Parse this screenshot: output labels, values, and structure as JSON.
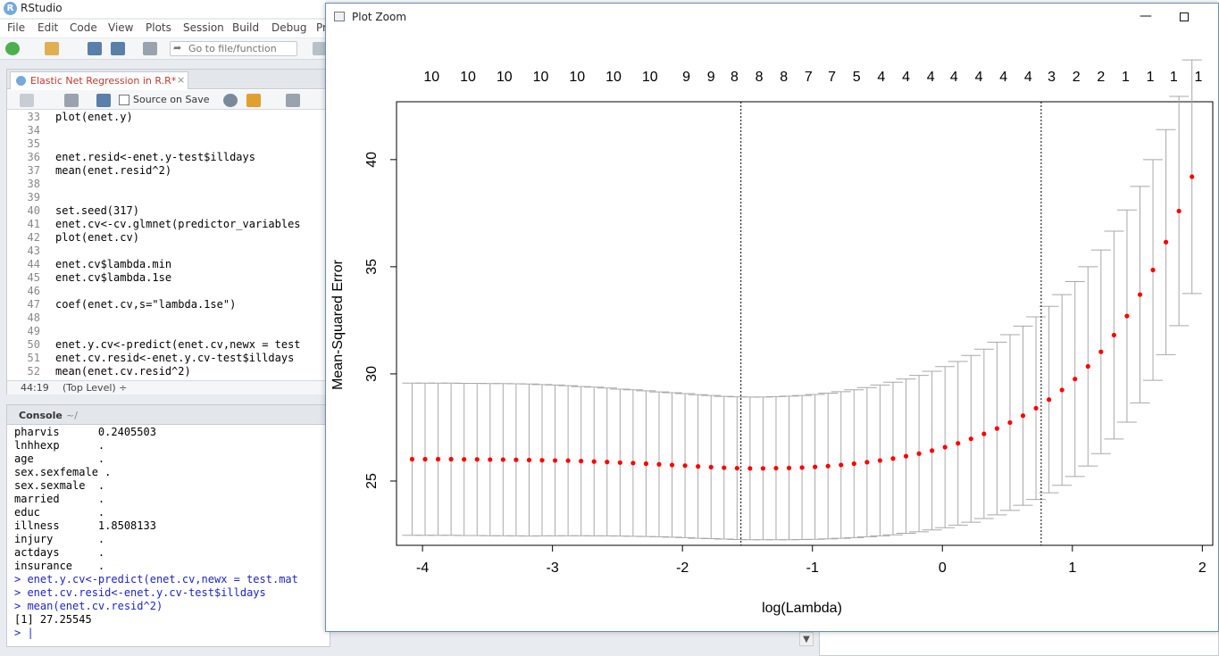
{
  "app": {
    "title": "RStudio",
    "menu": [
      "File",
      "Edit",
      "Code",
      "View",
      "Plots",
      "Session",
      "Build",
      "Debug",
      "Pr"
    ],
    "goto_placeholder": "Go to file/function"
  },
  "editor": {
    "tab_label": "Elastic Net Regression in R.R*",
    "tab_close": "×",
    "source_on_save": "Source on Save",
    "lines": [
      {
        "n": "33",
        "code": "plot(enet.y)"
      },
      {
        "n": "34",
        "code": ""
      },
      {
        "n": "35",
        "code": ""
      },
      {
        "n": "36",
        "code": "enet.resid<-enet.y-test$illdays"
      },
      {
        "n": "37",
        "code": "mean(enet.resid^2)"
      },
      {
        "n": "38",
        "code": ""
      },
      {
        "n": "39",
        "code": ""
      },
      {
        "n": "40",
        "code": "set.seed(317)"
      },
      {
        "n": "41",
        "code": "enet.cv<-cv.glmnet(predictor_variables"
      },
      {
        "n": "42",
        "code": "plot(enet.cv)"
      },
      {
        "n": "43",
        "code": ""
      },
      {
        "n": "44",
        "code": "enet.cv$lambda.min"
      },
      {
        "n": "45",
        "code": "enet.cv$lambda.1se"
      },
      {
        "n": "46",
        "code": ""
      },
      {
        "n": "47",
        "code": "coef(enet.cv,s=\"lambda.1se\")"
      },
      {
        "n": "48",
        "code": ""
      },
      {
        "n": "49",
        "code": ""
      },
      {
        "n": "50",
        "code": "enet.y.cv<-predict(enet.cv,newx = test"
      },
      {
        "n": "51",
        "code": "enet.cv.resid<-enet.y.cv-test$illdays"
      },
      {
        "n": "52",
        "code": "mean(enet.cv.resid^2)"
      }
    ],
    "status_position": "44:19",
    "status_level": "(Top Level) ÷"
  },
  "console": {
    "title": "Console",
    "path": "~/",
    "lines": [
      {
        "text": "pharvis      0.2405503",
        "type": "out"
      },
      {
        "text": "lnhhexp      .",
        "type": "out"
      },
      {
        "text": "age          .",
        "type": "out"
      },
      {
        "text": "sex.sexfemale .",
        "type": "out"
      },
      {
        "text": "sex.sexmale  .",
        "type": "out"
      },
      {
        "text": "married      .",
        "type": "out"
      },
      {
        "text": "educ         .",
        "type": "out"
      },
      {
        "text": "illness      1.8508133",
        "type": "out"
      },
      {
        "text": "injury       .",
        "type": "out"
      },
      {
        "text": "actdays      .",
        "type": "out"
      },
      {
        "text": "insurance    .",
        "type": "out"
      },
      {
        "text": "> enet.y.cv<-predict(enet.cv,newx = test.mat",
        "type": "cmd"
      },
      {
        "text": "> enet.cv.resid<-enet.y.cv-test$illdays",
        "type": "cmd"
      },
      {
        "text": "> mean(enet.cv.resid^2)",
        "type": "cmd"
      },
      {
        "text": "[1] 27.25545",
        "type": "out"
      },
      {
        "text": "> |",
        "type": "cmd"
      }
    ]
  },
  "plot_window": {
    "title": "Plot Zoom",
    "minimize": "—"
  },
  "chart_data": {
    "type": "scatter",
    "xlabel": "log(Lambda)",
    "ylabel": "Mean-Squared Error",
    "xlim": [
      -4.2,
      2.08
    ],
    "ylim": [
      22,
      42.7
    ],
    "xticks": [
      -4,
      -3,
      -2,
      -1,
      0,
      1,
      2
    ],
    "yticks": [
      25,
      30,
      35,
      40
    ],
    "lambda_min_log": -1.55,
    "lambda_1se_log": 0.76,
    "top_axis_labels": [
      {
        "x": -3.93,
        "label": "10"
      },
      {
        "x": -3.65,
        "label": "10"
      },
      {
        "x": -3.37,
        "label": "10"
      },
      {
        "x": -3.09,
        "label": "10"
      },
      {
        "x": -2.81,
        "label": "10"
      },
      {
        "x": -2.53,
        "label": "10"
      },
      {
        "x": -2.25,
        "label": "10"
      },
      {
        "x": -1.97,
        "label": "9"
      },
      {
        "x": -1.78,
        "label": "9"
      },
      {
        "x": -1.6,
        "label": "8"
      },
      {
        "x": -1.41,
        "label": "8"
      },
      {
        "x": -1.22,
        "label": "8"
      },
      {
        "x": -1.03,
        "label": "7"
      },
      {
        "x": -0.85,
        "label": "7"
      },
      {
        "x": -0.66,
        "label": "5"
      },
      {
        "x": -0.47,
        "label": "4"
      },
      {
        "x": -0.28,
        "label": "4"
      },
      {
        "x": -0.09,
        "label": "4"
      },
      {
        "x": 0.09,
        "label": "4"
      },
      {
        "x": 0.28,
        "label": "4"
      },
      {
        "x": 0.47,
        "label": "4"
      },
      {
        "x": 0.66,
        "label": "4"
      },
      {
        "x": 0.84,
        "label": "3"
      },
      {
        "x": 1.03,
        "label": "2"
      },
      {
        "x": 1.22,
        "label": "2"
      },
      {
        "x": 1.41,
        "label": "1"
      },
      {
        "x": 1.6,
        "label": "1"
      },
      {
        "x": 1.78,
        "label": "1"
      },
      {
        "x": 1.97,
        "label": "1"
      }
    ],
    "x": [
      -4.08,
      -3.98,
      -3.88,
      -3.78,
      -3.68,
      -3.58,
      -3.48,
      -3.38,
      -3.28,
      -3.18,
      -3.08,
      -2.98,
      -2.88,
      -2.78,
      -2.68,
      -2.58,
      -2.48,
      -2.38,
      -2.28,
      -2.18,
      -2.08,
      -1.98,
      -1.88,
      -1.78,
      -1.68,
      -1.58,
      -1.48,
      -1.38,
      -1.28,
      -1.18,
      -1.08,
      -0.98,
      -0.88,
      -0.78,
      -0.68,
      -0.58,
      -0.48,
      -0.38,
      -0.28,
      -0.18,
      -0.08,
      0.02,
      0.12,
      0.22,
      0.32,
      0.42,
      0.52,
      0.62,
      0.72,
      0.82,
      0.92,
      1.02,
      1.12,
      1.22,
      1.32,
      1.42,
      1.52,
      1.62,
      1.72,
      1.82,
      1.92
    ],
    "mse": [
      26.02,
      26.02,
      26.02,
      26.02,
      26.01,
      26.01,
      26.0,
      26.0,
      25.99,
      25.98,
      25.97,
      25.96,
      25.95,
      25.93,
      25.91,
      25.89,
      25.86,
      25.84,
      25.81,
      25.78,
      25.75,
      25.72,
      25.68,
      25.65,
      25.62,
      25.6,
      25.59,
      25.59,
      25.6,
      25.61,
      25.63,
      25.66,
      25.7,
      25.75,
      25.81,
      25.88,
      25.96,
      26.05,
      26.16,
      26.28,
      26.42,
      26.58,
      26.76,
      26.97,
      27.2,
      27.45,
      27.73,
      28.05,
      28.4,
      28.8,
      29.25,
      29.76,
      30.35,
      31.03,
      31.81,
      32.7,
      33.7,
      34.85,
      36.15,
      37.6,
      39.2
    ],
    "error_bar": [
      3.55,
      3.55,
      3.55,
      3.55,
      3.55,
      3.55,
      3.55,
      3.55,
      3.55,
      3.55,
      3.53,
      3.52,
      3.5,
      3.48,
      3.47,
      3.45,
      3.43,
      3.42,
      3.4,
      3.38,
      3.37,
      3.36,
      3.35,
      3.34,
      3.33,
      3.33,
      3.33,
      3.33,
      3.34,
      3.35,
      3.36,
      3.38,
      3.4,
      3.42,
      3.45,
      3.48,
      3.52,
      3.56,
      3.6,
      3.65,
      3.7,
      3.76,
      3.82,
      3.89,
      3.95,
      4.03,
      4.1,
      4.18,
      4.26,
      4.35,
      4.45,
      4.55,
      4.65,
      4.75,
      4.85,
      4.95,
      5.05,
      5.15,
      5.25,
      5.35,
      5.45
    ],
    "colors": {
      "point": "#ff0000",
      "error_bar": "#a8a8a8",
      "axis": "#000000",
      "ref_line": "#000000"
    }
  }
}
